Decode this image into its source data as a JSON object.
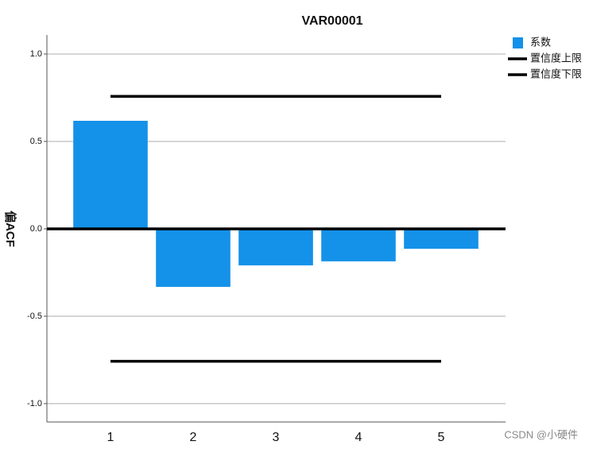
{
  "chart_data": {
    "type": "bar",
    "title": "VAR00001",
    "y_label": "偏ACF",
    "categories": [
      "1",
      "2",
      "3",
      "4",
      "5"
    ],
    "series": [
      {
        "name": "系数",
        "color": "#1491e8",
        "kind": "bar",
        "values": [
          0.618,
          -0.332,
          -0.209,
          -0.186,
          -0.114
        ]
      },
      {
        "name": "置信度上限",
        "color": "#000000",
        "kind": "line",
        "values": [
          0.758,
          0.758,
          0.758,
          0.758,
          0.758
        ]
      },
      {
        "name": "置信度下限",
        "color": "#000000",
        "kind": "line",
        "values": [
          -0.758,
          -0.758,
          -0.758,
          -0.758,
          -0.758
        ]
      }
    ],
    "ylim": [
      -1.105,
      1.109
    ],
    "yticks": [
      {
        "value": -1,
        "label": "-1.0"
      },
      {
        "value": -0.5,
        "label": "-0.5"
      },
      {
        "value": 0,
        "label": "0.0"
      },
      {
        "value": 0.5,
        "label": "0.5"
      },
      {
        "value": 1,
        "label": "1.0"
      }
    ],
    "grid": true,
    "legend": "top-right",
    "watermark": "CSDN @小硬件"
  }
}
